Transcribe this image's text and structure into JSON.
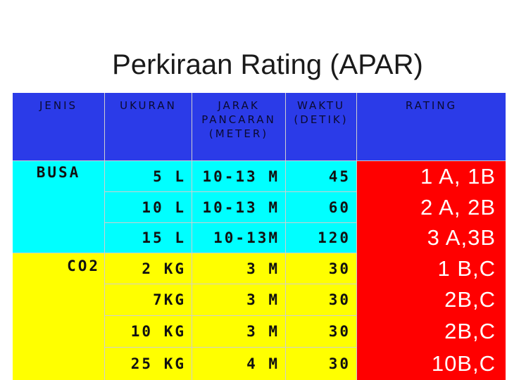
{
  "title": "Perkiraan Rating (APAR)",
  "headers": {
    "jenis": "JENIS",
    "ukuran": "UKURAN",
    "jarak": "JARAK\nPANCARAN\n(METER)",
    "waktu": "WAKTU\n(DETIK)",
    "rating": "RATING"
  },
  "rows": [
    {
      "jenis": "BUSA",
      "ukuran": "5 L",
      "jarak": "10-13 M",
      "waktu": "45",
      "rating": "1 A, 1B"
    },
    {
      "jenis": "",
      "ukuran": "10 L",
      "jarak": "10-13 M",
      "waktu": "60",
      "rating": "2 A, 2B"
    },
    {
      "jenis": "",
      "ukuran": "15 L",
      "jarak": "10-13M",
      "waktu": "120",
      "rating": "3 A,3B"
    },
    {
      "jenis": "CO2",
      "ukuran": "2 KG",
      "jarak": "3 M",
      "waktu": "30",
      "rating": "1 B,C"
    },
    {
      "jenis": "",
      "ukuran": "7KG",
      "jarak": "3 M",
      "waktu": "30",
      "rating": "2B,C"
    },
    {
      "jenis": "",
      "ukuran": "10 KG",
      "jarak": "3 M",
      "waktu": "30",
      "rating": "2B,C"
    },
    {
      "jenis": "",
      "ukuran": "25 KG",
      "jarak": "4 M",
      "waktu": "30",
      "rating": "10B,C"
    }
  ],
  "colors": {
    "header": "#2b3be8",
    "busa": "#00ffff",
    "co2": "#ffff00",
    "rating": "#ff0000"
  }
}
